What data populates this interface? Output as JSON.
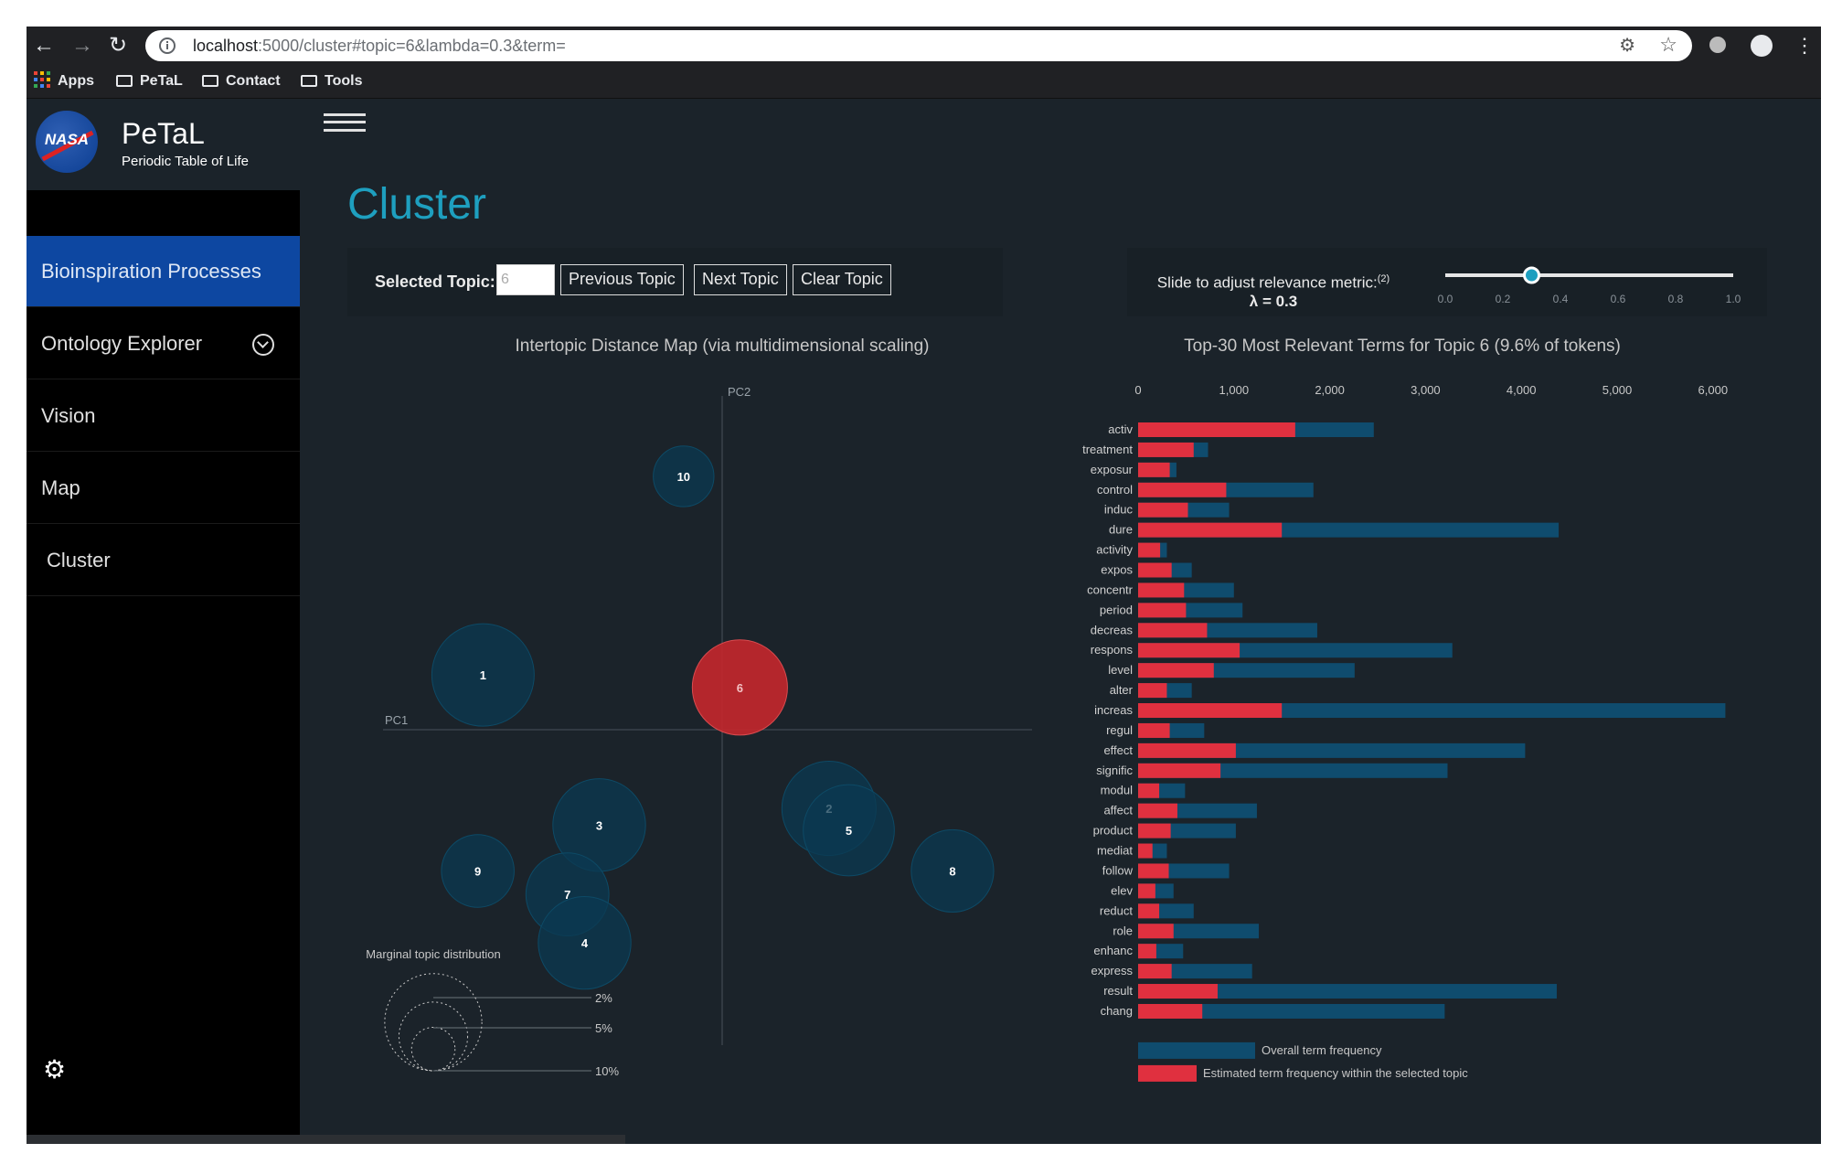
{
  "browser": {
    "url_host": "localhost",
    "url_rest": ":5000/cluster#topic=6&lambda=0.3&term=",
    "bookmarks": [
      "Apps",
      "PeTaL",
      "Contact",
      "Tools"
    ],
    "status_url": "localhost:5000/cluster#bioinsp"
  },
  "sidebar": {
    "brand_title": "PeTaL",
    "brand_subtitle": "Periodic Table of Life",
    "logo_text": "NASA",
    "items": [
      {
        "label": "Bioinspiration Processes",
        "active": true
      },
      {
        "label": "Ontology Explorer",
        "active": false
      },
      {
        "label": "Vision",
        "active": false
      },
      {
        "label": "Map",
        "active": false
      },
      {
        "label": "Cluster",
        "active": false
      }
    ]
  },
  "main": {
    "title": "Cluster",
    "selected_topic_label": "Selected Topic:",
    "selected_topic_value": "6",
    "prev_button": "Previous Topic",
    "next_button": "Next Topic",
    "clear_button": "Clear Topic",
    "slider_label": "Slide to adjust relevance metric:",
    "slider_note": "(2)",
    "lambda_text": "λ = 0.3",
    "lambda_value": 0.3,
    "slider_ticks": [
      "0.0",
      "0.2",
      "0.4",
      "0.6",
      "0.8",
      "1.0"
    ]
  },
  "colors": {
    "accent": "#1e9fbf",
    "nav_active": "#0d47a1",
    "topic_bubble": "#0b3a52",
    "selected_bubble": "#c1272d",
    "overall_bar": "#0f4c6e",
    "topic_bar": "#e0303f"
  },
  "chart_data": [
    {
      "type": "scatter",
      "title": "Intertopic Distance Map (via multidimensional scaling)",
      "xlabel": "PC1",
      "ylabel": "PC2",
      "selected_topic": "6",
      "points": [
        {
          "label": "10",
          "x": -0.074,
          "y": 0.486,
          "size": 3.9
        },
        {
          "label": "1",
          "x": -0.459,
          "y": 0.105,
          "size": 11.1
        },
        {
          "label": "6",
          "x": 0.034,
          "y": 0.081,
          "size": 9.6
        },
        {
          "label": "2",
          "x": 0.205,
          "y": -0.151,
          "size": 9.4
        },
        {
          "label": "5",
          "x": 0.243,
          "y": -0.193,
          "size": 8.8
        },
        {
          "label": "3",
          "x": -0.236,
          "y": -0.183,
          "size": 9.1
        },
        {
          "label": "9",
          "x": -0.469,
          "y": -0.271,
          "size": 5.6
        },
        {
          "label": "7",
          "x": -0.297,
          "y": -0.316,
          "size": 7.3
        },
        {
          "label": "8",
          "x": 0.442,
          "y": -0.271,
          "size": 7.2
        },
        {
          "label": "4",
          "x": -0.264,
          "y": -0.409,
          "size": 9.1
        }
      ],
      "legend": {
        "title": "Marginal topic distribution",
        "levels": [
          {
            "label": "2%",
            "value": 2
          },
          {
            "label": "5%",
            "value": 5
          },
          {
            "label": "10%",
            "value": 10
          }
        ]
      }
    },
    {
      "type": "bar",
      "orientation": "horizontal",
      "title": "Top-30 Most Relevant Terms for Topic 6 (9.6% of tokens)",
      "x_ticks": [
        "0",
        "1,000",
        "2,000",
        "3,000",
        "4,000",
        "5,000",
        "6,000"
      ],
      "xlim": [
        0,
        6000
      ],
      "categories": [
        "activ",
        "treatment",
        "exposur",
        "control",
        "induc",
        "dure",
        "activity",
        "expos",
        "concentr",
        "period",
        "decreas",
        "respons",
        "level",
        "alter",
        "increas",
        "regul",
        "effect",
        "signific",
        "modul",
        "affect",
        "product",
        "mediat",
        "follow",
        "elev",
        "reduct",
        "role",
        "enhanc",
        "express",
        "result",
        "chang"
      ],
      "series": [
        {
          "name": "Overall term frequency",
          "values": [
            2460,
            730,
            400,
            1830,
            950,
            4390,
            300,
            560,
            1000,
            1090,
            1870,
            3280,
            2260,
            560,
            6130,
            690,
            4040,
            3230,
            490,
            1240,
            1020,
            300,
            950,
            370,
            580,
            1260,
            470,
            1190,
            4370,
            3200
          ]
        },
        {
          "name": "Estimated term frequency within the selected topic",
          "values": [
            1640,
            580,
            330,
            920,
            520,
            1500,
            230,
            350,
            480,
            500,
            720,
            1060,
            790,
            300,
            1500,
            330,
            1020,
            860,
            220,
            410,
            340,
            150,
            320,
            180,
            220,
            370,
            190,
            350,
            830,
            670
          ]
        }
      ]
    }
  ]
}
